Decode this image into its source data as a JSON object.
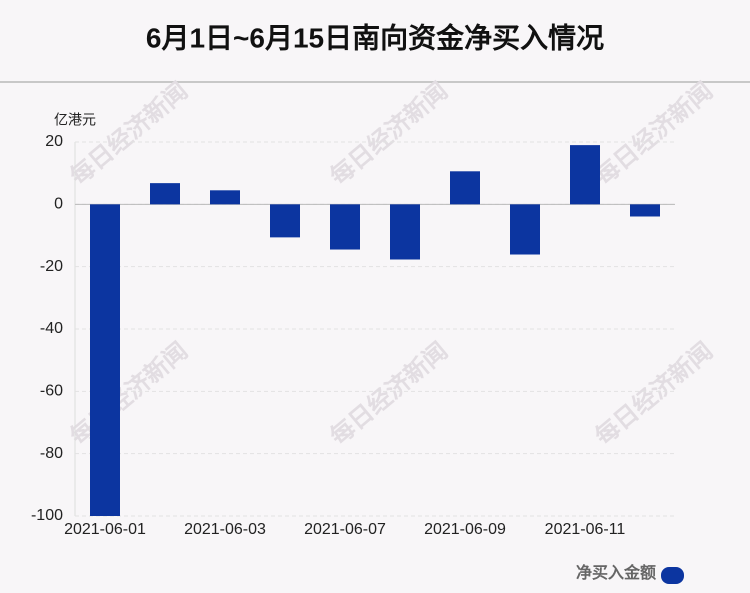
{
  "chart_data": {
    "type": "bar",
    "title": "6月1日~6月15日南向资金净买入情况",
    "y_unit": "亿港元",
    "watermark": "每日经济新闻",
    "categories": [
      "2021-06-01",
      null,
      "2021-06-03",
      null,
      "2021-06-07",
      null,
      "2021-06-09",
      null,
      "2021-06-11",
      null
    ],
    "series": [
      {
        "name": "净买入金额",
        "color": "#0c35a0",
        "values": [
          -100,
          6.8,
          4.5,
          -10.6,
          -14.5,
          -17.7,
          10.6,
          -16.1,
          19.0,
          -3.9
        ]
      }
    ],
    "ylim": [
      -100,
      20
    ],
    "yticks": [
      -100,
      -80,
      -60,
      -40,
      -20,
      0,
      20
    ],
    "grid": true,
    "legend": "bottom-right"
  }
}
